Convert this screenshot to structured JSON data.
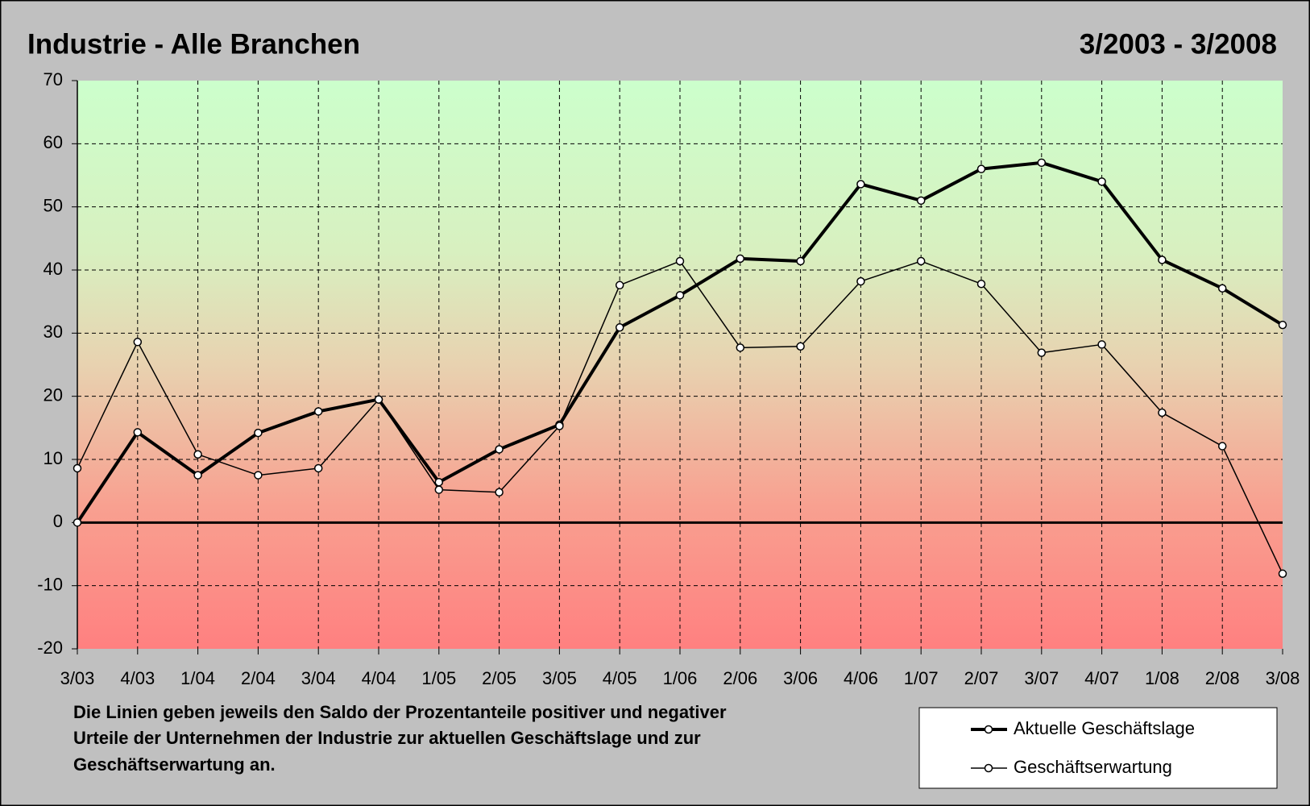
{
  "chart_data": {
    "type": "line",
    "title": "Industrie - Alle Branchen",
    "subtitle": "3/2003 - 3/2008",
    "annotation": [
      "Die Linien geben jeweils den Saldo der Prozentanteile positiver und negativer",
      "Urteile der Unternehmen der Industrie zur aktuellen Geschäftslage und zur",
      "Geschäftserwartung an."
    ],
    "categories": [
      "3/03",
      "4/03",
      "1/04",
      "2/04",
      "3/04",
      "4/04",
      "1/05",
      "2/05",
      "3/05",
      "4/05",
      "1/06",
      "2/06",
      "3/06",
      "4/06",
      "1/07",
      "2/07",
      "3/07",
      "4/07",
      "1/08",
      "2/08",
      "3/08"
    ],
    "series": [
      {
        "name": "Aktuelle Geschäftslage",
        "color": "#000000",
        "width": 4,
        "values": [
          0,
          14.3,
          7.5,
          14.2,
          17.6,
          19.5,
          6.4,
          11.6,
          15.5,
          30.9,
          36,
          41.8,
          41.4,
          53.6,
          51,
          56,
          57,
          54,
          41.6,
          37.1,
          31.3
        ]
      },
      {
        "name": "Geschäftserwartung",
        "color": "#000000",
        "width": 1.5,
        "values": [
          8.6,
          28.6,
          10.8,
          7.5,
          8.6,
          19.5,
          5.2,
          4.8,
          15.3,
          37.6,
          41.4,
          27.7,
          27.9,
          38.2,
          41.4,
          37.8,
          26.9,
          28.2,
          17.4,
          12.1,
          -8.1
        ]
      }
    ],
    "ylim": [
      -20,
      70
    ],
    "yticks": [
      -20,
      -10,
      0,
      10,
      20,
      30,
      40,
      50,
      60,
      70
    ],
    "grid": true
  }
}
